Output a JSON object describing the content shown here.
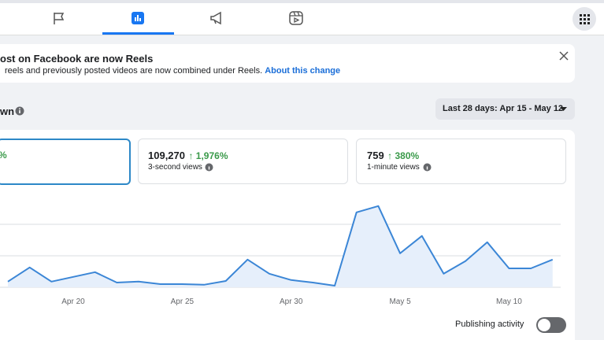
{
  "banner": {
    "title": "ost on Facebook are now Reels",
    "text": "reels and previously posted videos are now combined under Reels.",
    "link": "About this change"
  },
  "section_title": "wn",
  "date_range": "Last 28 days: Apr 15 - May 12",
  "metrics": [
    {
      "change": "%"
    },
    {
      "value": "109,270",
      "change": "↑ 1,976%",
      "label": "3-second views"
    },
    {
      "value": "759",
      "change": "↑ 380%",
      "label": "1-minute views"
    }
  ],
  "toggle_label": "Publishing activity",
  "chart_data": {
    "type": "line",
    "categories": [
      null,
      null,
      null,
      "Apr 20",
      null,
      null,
      null,
      null,
      "Apr 25",
      null,
      null,
      null,
      null,
      "Apr 30",
      null,
      null,
      null,
      null,
      "May 5",
      null,
      null,
      null,
      null,
      "May 10",
      null,
      null
    ],
    "values": [
      0.18,
      0.63,
      0.18,
      0.33,
      0.48,
      0.15,
      0.18,
      0.1,
      0.1,
      0.08,
      0.2,
      0.88,
      0.43,
      0.23,
      0.15,
      0.05,
      2.38,
      2.58,
      1.08,
      1.63,
      0.43,
      0.83,
      1.43,
      0.6,
      0.6,
      0.88
    ],
    "color": "#3b86d6",
    "ylim": [
      0,
      3
    ],
    "grid_lines": [
      1,
      2
    ]
  }
}
